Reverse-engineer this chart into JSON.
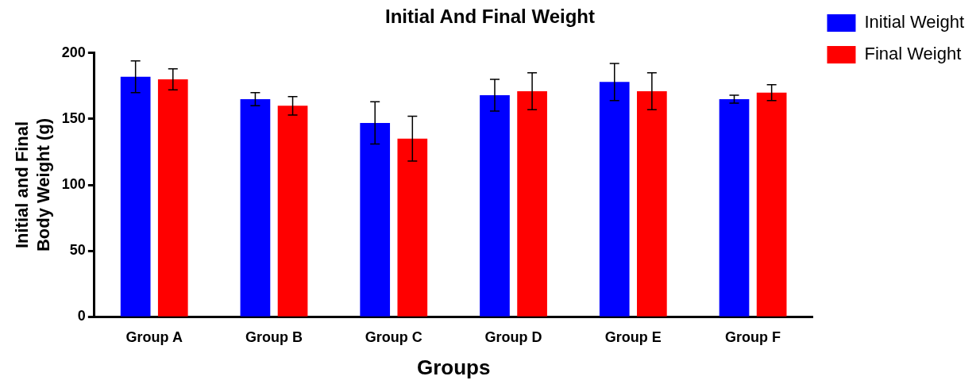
{
  "chart_data": {
    "type": "bar",
    "title": "Initial And Final Weight",
    "xlabel": "Groups",
    "ylabel": "Initial and Final\nBody Weight (g)",
    "categories": [
      "Group A",
      "Group B",
      "Group C",
      "Group D",
      "Group E",
      "Group F"
    ],
    "series": [
      {
        "name": "Initial Weight",
        "color": "#0000ff",
        "values": [
          182,
          165,
          147,
          168,
          178,
          165
        ],
        "errors": [
          12,
          5,
          16,
          12,
          14,
          3
        ]
      },
      {
        "name": "Final Weight",
        "color": "#ff0000",
        "values": [
          180,
          160,
          135,
          171,
          171,
          170
        ],
        "errors": [
          8,
          7,
          17,
          14,
          14,
          6
        ]
      }
    ],
    "ylim": [
      0,
      200
    ],
    "yticks": [
      0,
      50,
      100,
      150,
      200
    ],
    "grid": false,
    "legend": "right"
  }
}
